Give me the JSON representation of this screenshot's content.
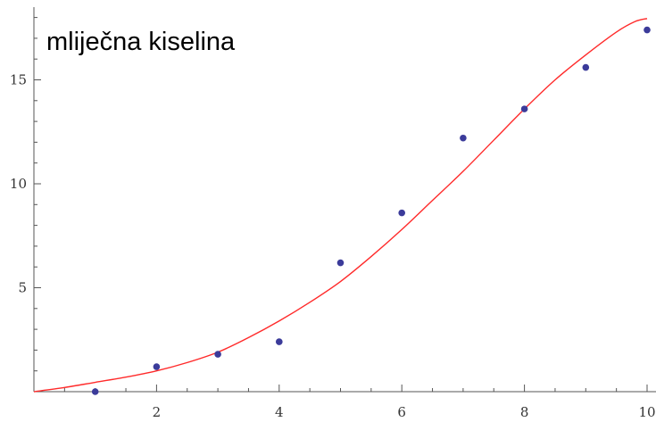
{
  "chart_data": {
    "type": "scatter",
    "title": "mliječna kiselina",
    "xlabel": "",
    "ylabel": "",
    "xlim": [
      0,
      10.2
    ],
    "ylim": [
      0,
      18.5
    ],
    "x_ticks": [
      2,
      4,
      6,
      8,
      10
    ],
    "y_ticks": [
      5,
      10,
      15
    ],
    "grid": false,
    "legend": "none",
    "point_color": "#3b3b9a",
    "curve_color": "#ff2a2a",
    "points": [
      {
        "x": 1,
        "y": 0.0
      },
      {
        "x": 2,
        "y": 1.2
      },
      {
        "x": 3,
        "y": 1.8
      },
      {
        "x": 4,
        "y": 2.4
      },
      {
        "x": 5,
        "y": 6.2
      },
      {
        "x": 6,
        "y": 8.6
      },
      {
        "x": 7,
        "y": 12.2
      },
      {
        "x": 8,
        "y": 13.6
      },
      {
        "x": 9,
        "y": 15.6
      },
      {
        "x": 10,
        "y": 17.4
      }
    ],
    "fit_curve": [
      {
        "x": 0,
        "y": 0.0
      },
      {
        "x": 0.5,
        "y": 0.2
      },
      {
        "x": 1,
        "y": 0.45
      },
      {
        "x": 1.5,
        "y": 0.7
      },
      {
        "x": 2,
        "y": 1.0
      },
      {
        "x": 2.5,
        "y": 1.4
      },
      {
        "x": 3,
        "y": 1.9
      },
      {
        "x": 3.5,
        "y": 2.6
      },
      {
        "x": 4,
        "y": 3.4
      },
      {
        "x": 4.5,
        "y": 4.3
      },
      {
        "x": 5,
        "y": 5.3
      },
      {
        "x": 5.5,
        "y": 6.5
      },
      {
        "x": 6,
        "y": 7.8
      },
      {
        "x": 6.5,
        "y": 9.2
      },
      {
        "x": 7,
        "y": 10.6
      },
      {
        "x": 7.5,
        "y": 12.1
      },
      {
        "x": 8,
        "y": 13.6
      },
      {
        "x": 8.5,
        "y": 15.0
      },
      {
        "x": 9,
        "y": 16.2
      },
      {
        "x": 9.5,
        "y": 17.3
      },
      {
        "x": 9.8,
        "y": 17.8
      },
      {
        "x": 10,
        "y": 17.95
      }
    ]
  }
}
